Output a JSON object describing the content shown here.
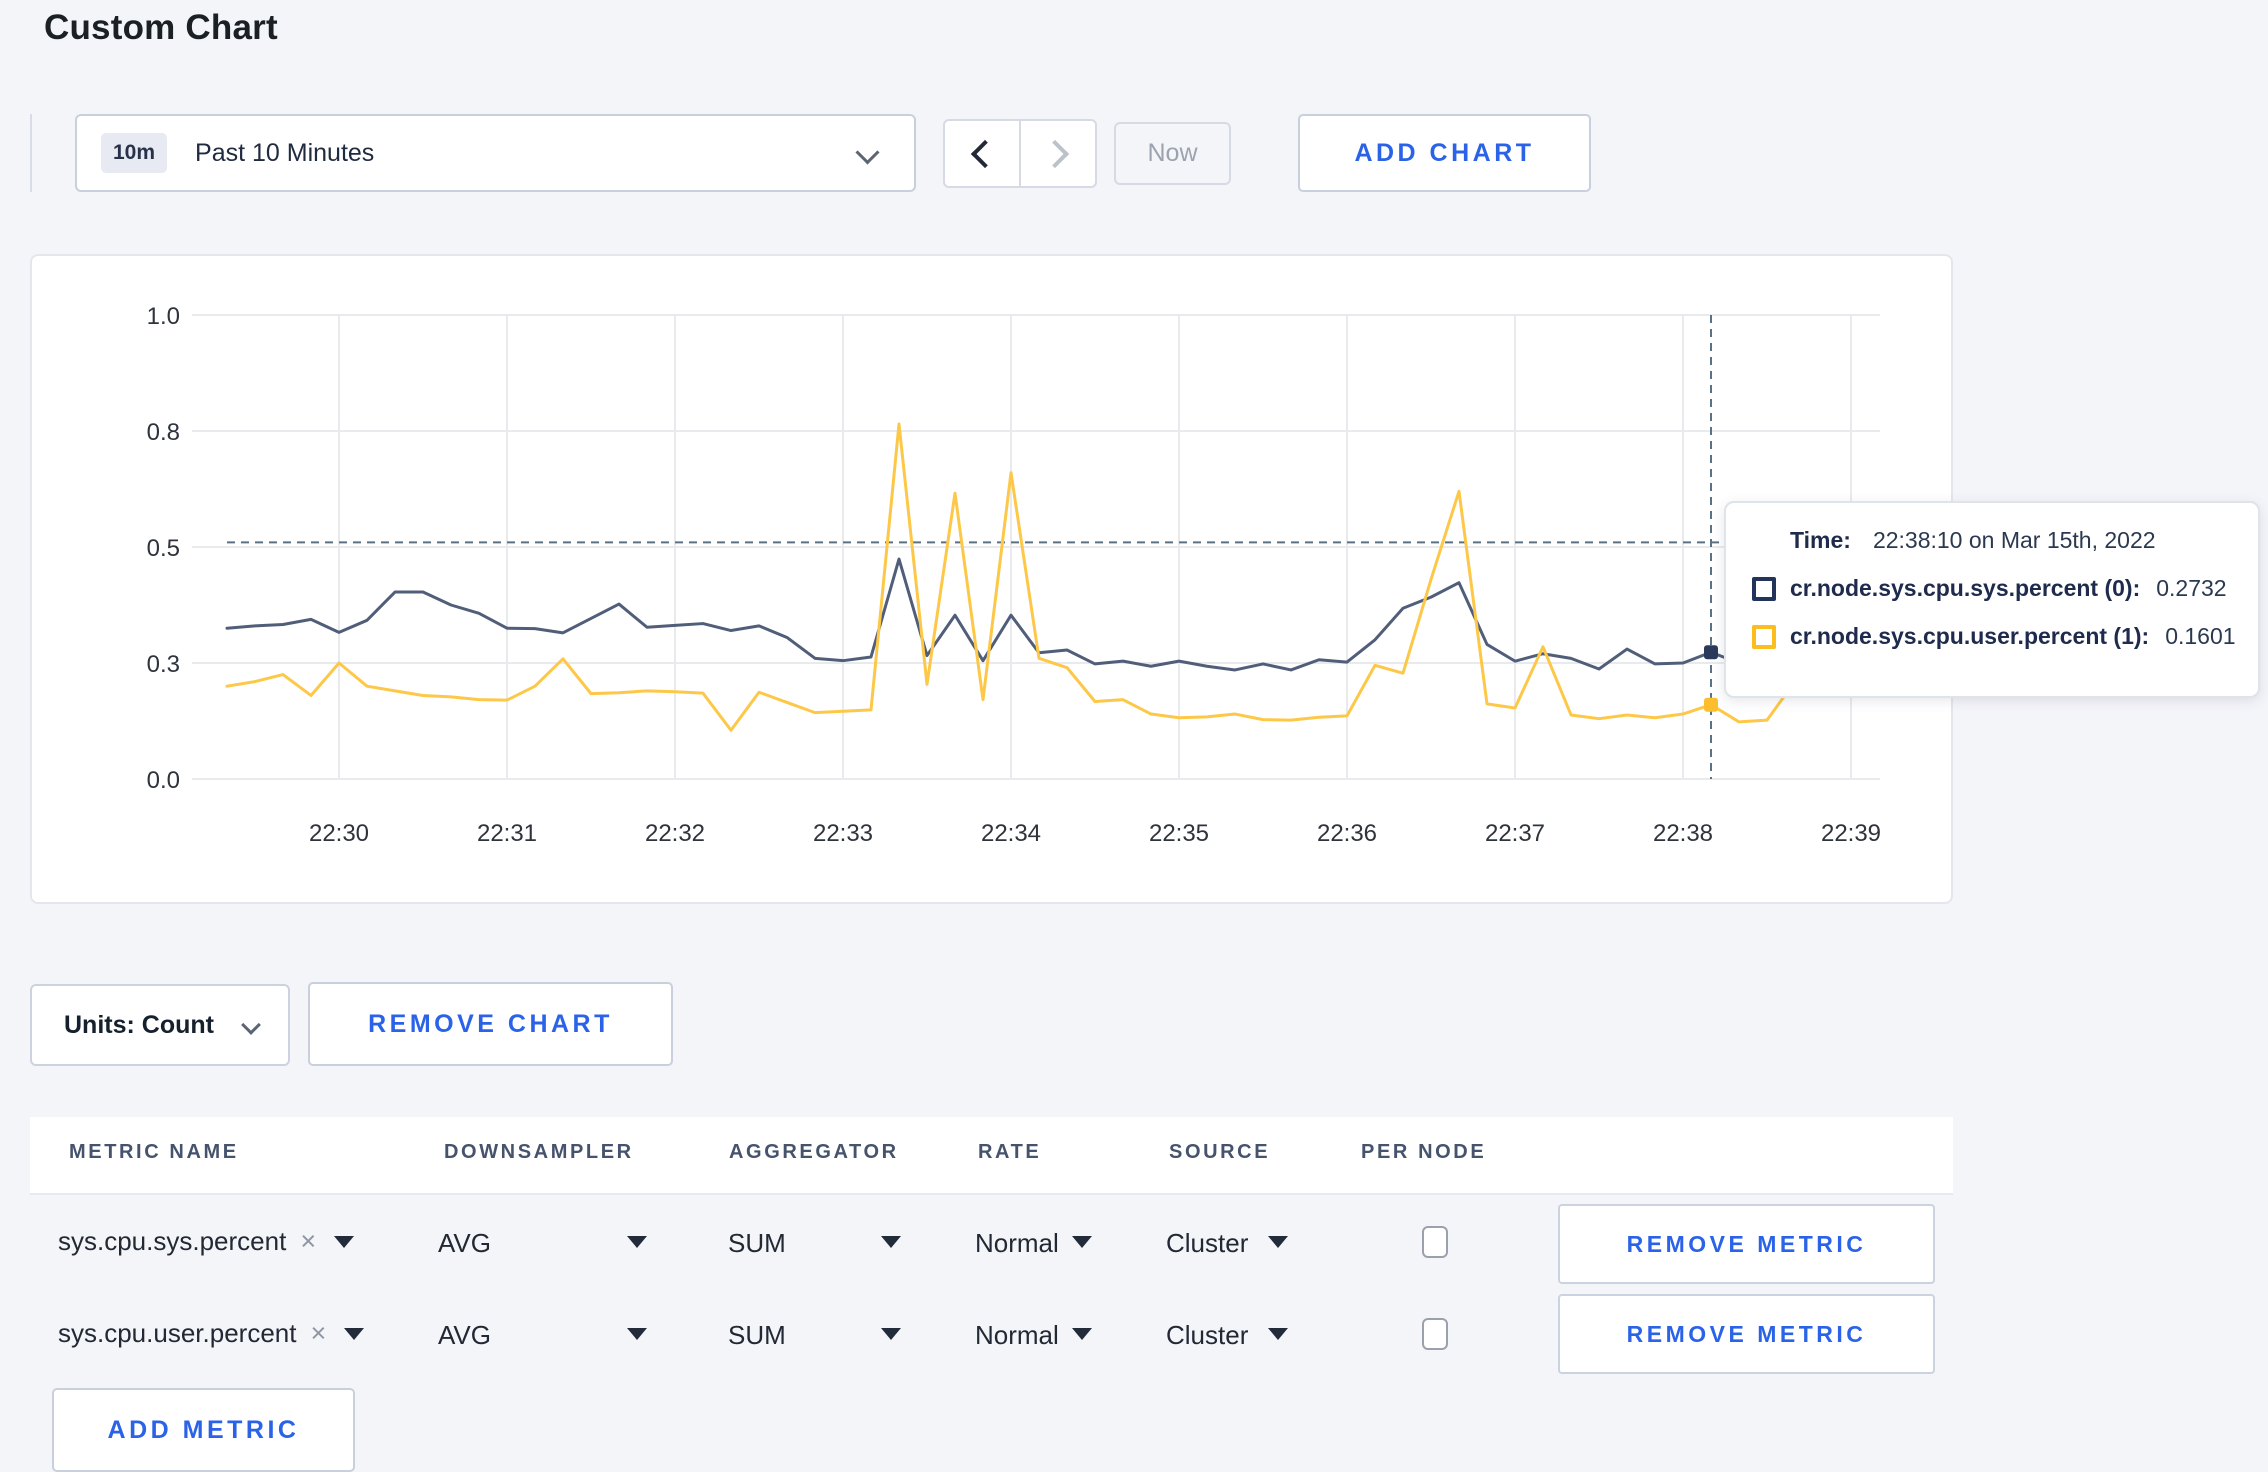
{
  "page_title": "Custom Chart",
  "toolbar": {
    "timescale_badge": "10m",
    "timescale_label": "Past 10 Minutes",
    "now_label": "Now",
    "add_chart_label": "ADD CHART"
  },
  "chart_controls": {
    "units_label": "Units: Count",
    "remove_chart_label": "REMOVE CHART"
  },
  "tooltip": {
    "time_label": "Time:",
    "time_value": "22:38:10 on Mar 15th, 2022",
    "series": [
      {
        "name": "cr.node.sys.cpu.sys.percent (0):",
        "value": "0.2732",
        "swatch_color": "#22335c"
      },
      {
        "name": "cr.node.sys.cpu.user.percent (1):",
        "value": "0.1601",
        "swatch_color": "#fcbe1e"
      }
    ]
  },
  "metrics_table": {
    "headers": [
      "METRIC NAME",
      "DOWNSAMPLER",
      "AGGREGATOR",
      "RATE",
      "SOURCE",
      "PER NODE"
    ],
    "rows": [
      {
        "metric": "sys.cpu.sys.percent",
        "downsampler": "AVG",
        "aggregator": "SUM",
        "rate": "Normal",
        "source": "Cluster",
        "per_node_checked": false,
        "remove_label": "REMOVE METRIC"
      },
      {
        "metric": "sys.cpu.user.percent",
        "downsampler": "AVG",
        "aggregator": "SUM",
        "rate": "Normal",
        "source": "Cluster",
        "per_node_checked": false,
        "remove_label": "REMOVE METRIC"
      }
    ],
    "add_metric_label": "ADD METRIC"
  },
  "chart_data": {
    "type": "line",
    "title": "",
    "xlabel": "",
    "ylabel": "",
    "ylim": [
      0,
      1
    ],
    "grid": true,
    "x_ticks": [
      "22:30",
      "22:31",
      "22:32",
      "22:33",
      "22:34",
      "22:35",
      "22:36",
      "22:37",
      "22:38",
      "22:39"
    ],
    "y_ticks": [
      {
        "label": "0.0",
        "value": 0
      },
      {
        "label": "0.3",
        "value": 0.25
      },
      {
        "label": "0.5",
        "value": 0.5
      },
      {
        "label": "0.8",
        "value": 0.75
      },
      {
        "label": "1.0",
        "value": 1.0
      }
    ],
    "start_time": "22:29:20",
    "end_time": "22:39:10",
    "interval_seconds": 10,
    "first_point_seconds_before_first_tick": 40,
    "series": [
      {
        "name": "cr.node.sys.cpu.sys.percent",
        "color": "#515e79",
        "marker_color": "#2b3a5c",
        "values": [
          0.325,
          0.33,
          0.333,
          0.344,
          0.316,
          0.342,
          0.403,
          0.403,
          0.375,
          0.357,
          0.325,
          0.324,
          0.315,
          0.346,
          0.377,
          0.327,
          0.331,
          0.335,
          0.32,
          0.33,
          0.305,
          0.26,
          0.255,
          0.263,
          0.474,
          0.266,
          0.353,
          0.255,
          0.353,
          0.272,
          0.278,
          0.248,
          0.254,
          0.243,
          0.254,
          0.243,
          0.235,
          0.248,
          0.235,
          0.257,
          0.252,
          0.3,
          0.368,
          0.392,
          0.423,
          0.29,
          0.254,
          0.27,
          0.26,
          0.237,
          0.28,
          0.248,
          0.25,
          0.2732,
          0.25,
          0.28,
          0.29,
          0.3,
          0.295,
          0.3
        ]
      },
      {
        "name": "cr.node.sys.cpu.user.percent",
        "color": "#fdc848",
        "marker_color": "#fcbe2d",
        "values": [
          0.2,
          0.21,
          0.225,
          0.18,
          0.25,
          0.2,
          0.19,
          0.18,
          0.177,
          0.171,
          0.17,
          0.2,
          0.259,
          0.184,
          0.186,
          0.19,
          0.188,
          0.185,
          0.105,
          0.187,
          0.165,
          0.143,
          0.146,
          0.149,
          0.765,
          0.204,
          0.616,
          0.171,
          0.66,
          0.26,
          0.24,
          0.167,
          0.171,
          0.14,
          0.132,
          0.134,
          0.14,
          0.128,
          0.127,
          0.133,
          0.136,
          0.245,
          0.228,
          0.43,
          0.62,
          0.162,
          0.153,
          0.285,
          0.138,
          0.13,
          0.138,
          0.132,
          0.14,
          0.1601,
          0.123,
          0.127,
          0.21,
          0.25,
          0.19,
          0.27
        ]
      }
    ],
    "crosshair": {
      "time": "22:38:10",
      "index": 53,
      "hline_value": 0.51
    },
    "legend_position": "tooltip"
  },
  "colors": {
    "accent_blue": "#2b63e8",
    "page_background": "#f4f5f9",
    "gridline": "#e9eaee",
    "crosshair": "#5b7186",
    "axis_text": "#2e333c"
  }
}
